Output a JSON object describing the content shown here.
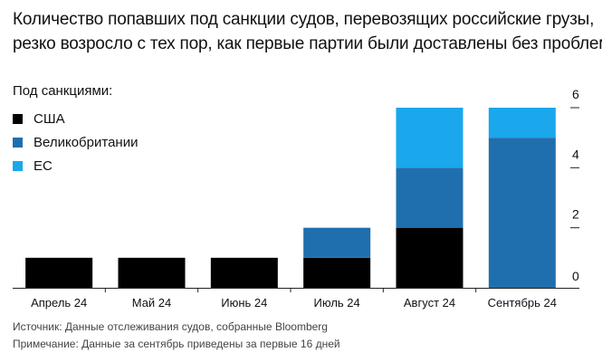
{
  "header": {
    "title_line1": "Количество попавших под санкции судов, перевозящих российские грузы,",
    "title_line2": "резко возросло с тех пор, как первые партии были доставлены без проблем"
  },
  "legend": {
    "title": "Под санкциями:",
    "items": [
      {
        "label": "США",
        "color": "#000000"
      },
      {
        "label": "Великобритании",
        "color": "#1f6fae"
      },
      {
        "label": "ЕС",
        "color": "#1aa7ec"
      }
    ]
  },
  "footer": {
    "source": "Источник: Данные отслеживания судов, собранные Bloomberg",
    "note": "Примечание: Данные за сентябрь приведены за первые 16 дней"
  },
  "chart_data": {
    "type": "bar",
    "stacked": true,
    "categories": [
      "Апрель 24",
      "Май 24",
      "Июнь 24",
      "Июль 24",
      "Август 24",
      "Сентябрь 24"
    ],
    "series": [
      {
        "name": "США",
        "color": "#000000",
        "values": [
          1,
          1,
          1,
          1,
          2,
          0
        ]
      },
      {
        "name": "Великобритании",
        "color": "#1f6fae",
        "values": [
          0,
          0,
          0,
          1,
          2,
          5
        ]
      },
      {
        "name": "ЕС",
        "color": "#1aa7ec",
        "values": [
          0,
          0,
          0,
          0,
          2,
          1
        ]
      }
    ],
    "yticks": [
      "0",
      "2",
      "4",
      "6"
    ],
    "ytick_values": [
      0,
      2,
      4,
      6
    ],
    "ylim": [
      0,
      6
    ],
    "y_axis_side": "right",
    "legend_position": "top-left",
    "grid": false
  }
}
